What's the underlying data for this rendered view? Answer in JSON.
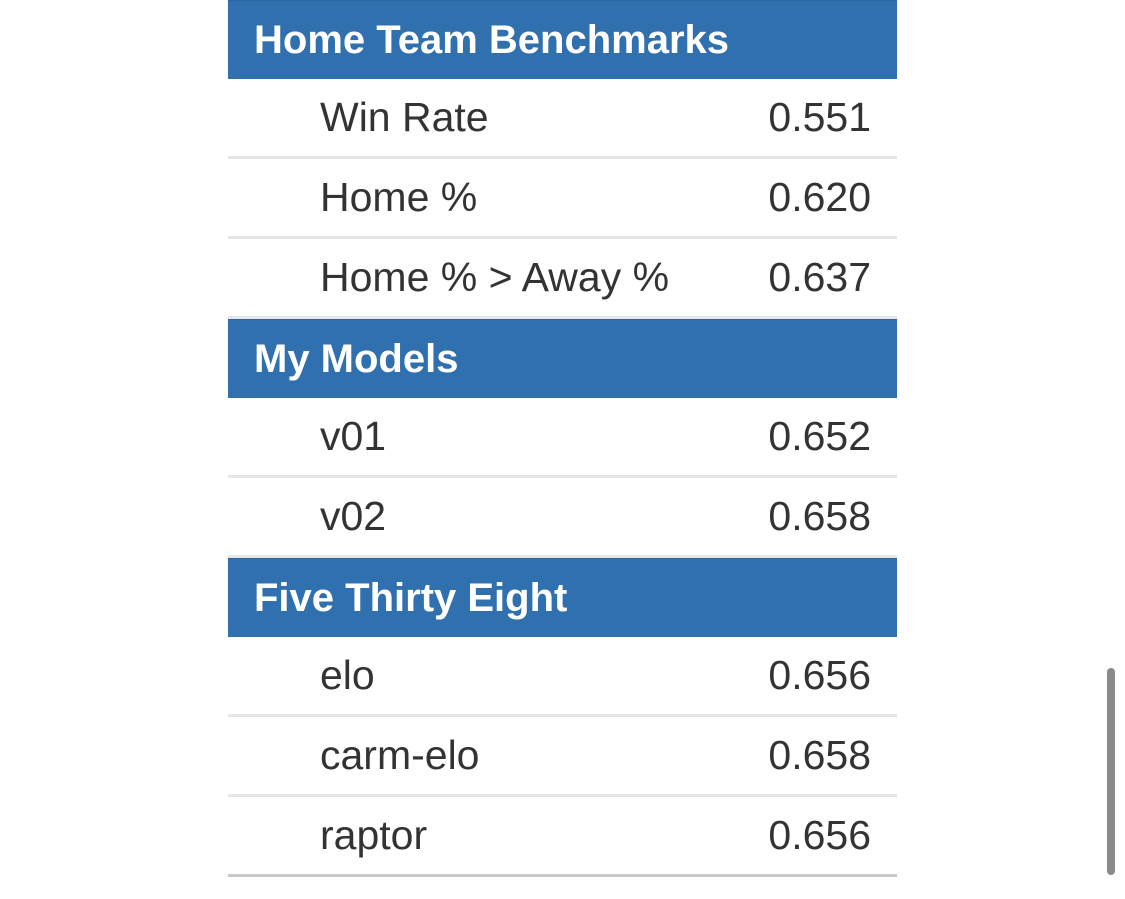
{
  "sections": [
    {
      "title": "Home Team Benchmarks",
      "rows": [
        {
          "label": "Win Rate",
          "value": "0.551"
        },
        {
          "label": "Home %",
          "value": "0.620"
        },
        {
          "label": "Home % > Away %",
          "value": "0.637"
        }
      ]
    },
    {
      "title": "My Models",
      "rows": [
        {
          "label": "v01",
          "value": "0.652"
        },
        {
          "label": "v02",
          "value": "0.658"
        }
      ]
    },
    {
      "title": "Five Thirty Eight",
      "rows": [
        {
          "label": "elo",
          "value": "0.656"
        },
        {
          "label": "carm-elo",
          "value": "0.658"
        },
        {
          "label": "raptor",
          "value": "0.656"
        }
      ]
    }
  ],
  "colors": {
    "header_bg": "#3070ae",
    "header_text": "#ffffff",
    "row_text": "#333333",
    "divider": "#e6e6e6"
  }
}
